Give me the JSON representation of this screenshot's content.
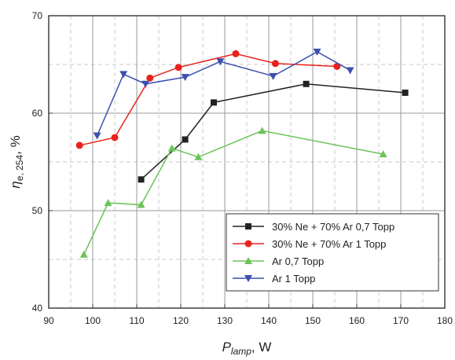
{
  "chart_data": {
    "type": "line",
    "xlabel": {
      "symbol": "P",
      "subscript": "lamp",
      "unit": ", W"
    },
    "ylabel": {
      "symbol": "η",
      "subscript": "e, 254",
      "unit": ", %"
    },
    "xlim": [
      90,
      180
    ],
    "ylim": [
      40,
      70
    ],
    "xticks": [
      "90",
      "100",
      "110",
      "120",
      "130",
      "140",
      "150",
      "160",
      "170",
      "180"
    ],
    "yticks": [
      "40",
      "50",
      "60",
      "70"
    ],
    "grid": true,
    "legend_position": "bottom-right",
    "series": [
      {
        "name": "30% Ne + 70% Ar 0,7 Topp",
        "color": "#222222",
        "marker": "square",
        "x": [
          111,
          121,
          127.5,
          148.5,
          171
        ],
        "y": [
          53.2,
          57.3,
          61.1,
          63.0,
          62.1
        ]
      },
      {
        "name": "30% Ne + 70% Ar 1 Topp",
        "color": "#e8231d",
        "marker": "circle",
        "x": [
          97,
          105,
          113,
          119.5,
          132.5,
          141.5,
          155.5
        ],
        "y": [
          56.7,
          57.5,
          63.6,
          64.7,
          66.1,
          65.1,
          64.8
        ]
      },
      {
        "name": "Ar 0,7 Topp",
        "color": "#6cc35a",
        "marker": "triangle-up",
        "x": [
          98,
          103.5,
          111,
          118,
          124,
          138.5,
          166
        ],
        "y": [
          45.5,
          50.8,
          50.6,
          56.4,
          55.5,
          58.2,
          55.8
        ]
      },
      {
        "name": "Ar 1 Topp",
        "color": "#3e4fae",
        "marker": "triangle-down",
        "x": [
          101,
          107,
          112,
          121,
          129,
          141,
          151,
          158.5
        ],
        "y": [
          57.7,
          64.0,
          63.0,
          63.7,
          65.3,
          63.8,
          66.3,
          64.4
        ]
      }
    ]
  }
}
